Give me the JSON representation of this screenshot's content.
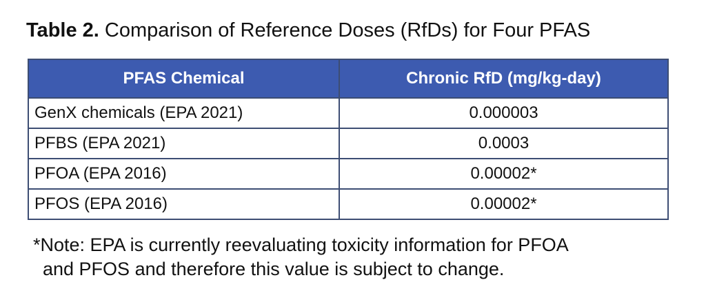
{
  "caption": {
    "label": "Table 2.",
    "text": " Comparison of Reference Doses (RfDs) for Four PFAS"
  },
  "table": {
    "headers": [
      "PFAS Chemical",
      "Chronic RfD (mg/kg-day)"
    ],
    "rows": [
      {
        "chemical": "GenX chemicals (EPA 2021)",
        "rfd": "0.000003"
      },
      {
        "chemical": "PFBS (EPA 2021)",
        "rfd": "0.0003"
      },
      {
        "chemical": "PFOA (EPA 2016)",
        "rfd": "0.00002*"
      },
      {
        "chemical": "PFOS (EPA 2016)",
        "rfd": "0.00002*"
      }
    ]
  },
  "note": {
    "line1": "*Note: EPA is currently reevaluating toxicity information for PFOA",
    "line2": "and PFOS and therefore this value is subject to change."
  }
}
